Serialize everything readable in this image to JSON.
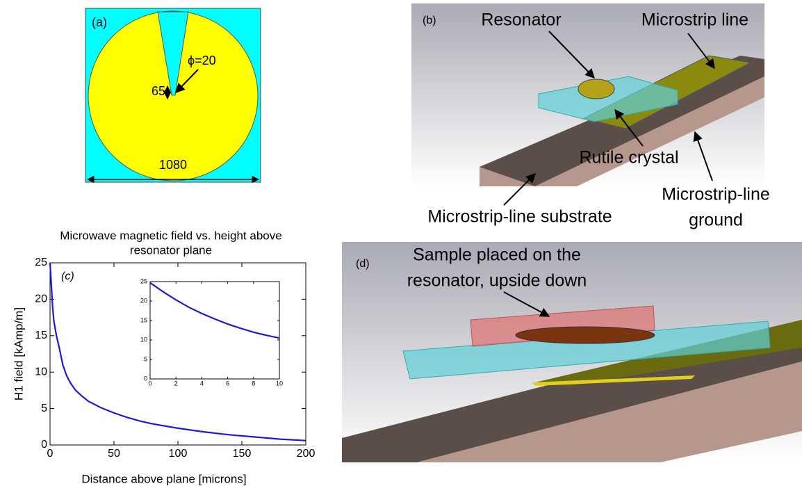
{
  "panels": {
    "a": {
      "label": "(a)",
      "phi": "ϕ=20",
      "gap": "65",
      "diameter": "1080"
    },
    "b": {
      "label": "(b)",
      "resonator": "Resonator",
      "microstrip": "Microstrip line",
      "crystal": "Rutile crystal",
      "ground": [
        "Microstrip-line",
        "ground"
      ],
      "substrate": "Microstrip-line substrate"
    },
    "d": {
      "label": "(d)",
      "sample": [
        "Sample placed on the",
        "resonator, upside down"
      ]
    }
  },
  "chart_data": [
    {
      "type": "line",
      "title": [
        "Microwave magnetic field vs. height above",
        "resonator plane"
      ],
      "annotation": "(c)",
      "xlabel": "Distance above plane [microns]",
      "ylabel": "H1 field [kAmp/m]",
      "xlim": [
        0,
        200
      ],
      "xticks": [
        0,
        50,
        100,
        150,
        200
      ],
      "ylim": [
        0,
        25
      ],
      "yticks": [
        0,
        5,
        10,
        15,
        20,
        25
      ],
      "series": [
        {
          "color": "#1a1adb",
          "x": [
            0,
            1,
            2,
            3,
            5,
            7,
            10,
            13,
            16,
            20,
            25,
            30,
            40,
            50,
            60,
            70,
            80,
            90,
            100,
            120,
            140,
            160,
            180,
            200
          ],
          "values": [
            25,
            22,
            19,
            17,
            15,
            13.5,
            11,
            9.5,
            8.5,
            7.5,
            6.7,
            6,
            5.1,
            4.4,
            3.8,
            3.3,
            2.9,
            2.6,
            2.3,
            1.8,
            1.4,
            1.1,
            0.8,
            0.6
          ]
        }
      ]
    },
    {
      "type": "line",
      "xlim": [
        0,
        10
      ],
      "xticks": [
        0,
        2,
        4,
        6,
        8,
        10
      ],
      "ylim": [
        0,
        25
      ],
      "yticks": [
        0,
        5,
        10,
        15,
        20,
        25
      ],
      "series": [
        {
          "color": "#1a1adb",
          "x": [
            0,
            1,
            2,
            3,
            4,
            5,
            6,
            7,
            8,
            9,
            10
          ],
          "values": [
            24.7,
            22.4,
            20.3,
            18.4,
            16.8,
            15.4,
            14.1,
            13.0,
            12.0,
            11.2,
            10.5
          ]
        }
      ]
    }
  ]
}
